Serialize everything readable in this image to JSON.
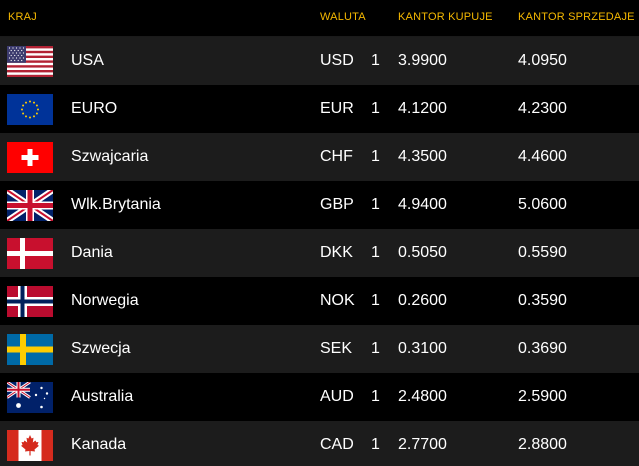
{
  "header": {
    "country": "KRAJ",
    "currency": "WALUTA",
    "buy": "KANTOR KUPUJE",
    "sell": "KANTOR SPRZEDAJE"
  },
  "rows": [
    {
      "country": "USA",
      "code": "USD",
      "unit": "1",
      "buy": "3.9900",
      "sell": "4.0950",
      "flag": "usa-flag-icon"
    },
    {
      "country": "EURO",
      "code": "EUR",
      "unit": "1",
      "buy": "4.1200",
      "sell": "4.2300",
      "flag": "eu-flag-icon"
    },
    {
      "country": "Szwajcaria",
      "code": "CHF",
      "unit": "1",
      "buy": "4.3500",
      "sell": "4.4600",
      "flag": "switzerland-flag-icon"
    },
    {
      "country": "Wlk.Brytania",
      "code": "GBP",
      "unit": "1",
      "buy": "4.9400",
      "sell": "5.0600",
      "flag": "uk-flag-icon"
    },
    {
      "country": "Dania",
      "code": "DKK",
      "unit": "1",
      "buy": "0.5050",
      "sell": "0.5590",
      "flag": "denmark-flag-icon"
    },
    {
      "country": "Norwegia",
      "code": "NOK",
      "unit": "1",
      "buy": "0.2600",
      "sell": "0.3590",
      "flag": "norway-flag-icon"
    },
    {
      "country": "Szwecja",
      "code": "SEK",
      "unit": "1",
      "buy": "0.3100",
      "sell": "0.3690",
      "flag": "sweden-flag-icon"
    },
    {
      "country": "Australia",
      "code": "AUD",
      "unit": "1",
      "buy": "2.4800",
      "sell": "2.5900",
      "flag": "australia-flag-icon"
    },
    {
      "country": "Kanada",
      "code": "CAD",
      "unit": "1",
      "buy": "2.7700",
      "sell": "2.8800",
      "flag": "canada-flag-icon"
    }
  ],
  "colors": {
    "header_text": "#f5b800",
    "row_odd": "#1c1c1c",
    "row_even": "#000000",
    "text": "#ffffff"
  }
}
